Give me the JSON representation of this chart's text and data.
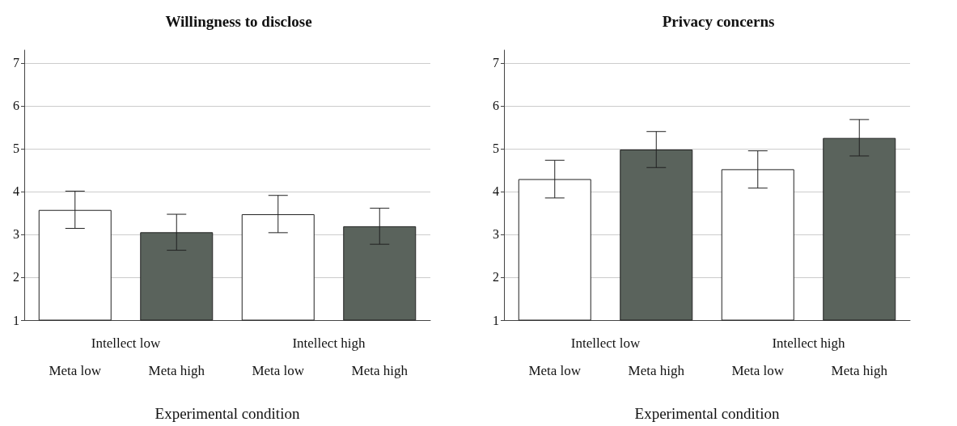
{
  "chart_data": [
    {
      "type": "bar",
      "title": "Willingness to disclose",
      "xlabel": "Experimental condition",
      "categories": [
        "Meta low",
        "Meta high",
        "Meta low",
        "Meta high"
      ],
      "values": [
        3.57,
        3.05,
        3.47,
        3.19
      ],
      "colors": [
        "#ffffff",
        "#5a635c",
        "#ffffff",
        "#5a635c"
      ],
      "errors": [
        [
          3.14,
          4.01
        ],
        [
          2.63,
          3.47
        ],
        [
          3.04,
          3.91
        ],
        [
          2.77,
          3.61
        ]
      ],
      "annotations": [
        "Intellect low",
        "Intellect high"
      ],
      "ylim": [
        1,
        7.3
      ],
      "yticks": [
        1,
        2,
        3,
        4,
        5,
        6,
        7
      ],
      "grid": "y"
    },
    {
      "type": "bar",
      "title": "Privacy concerns",
      "xlabel": "Experimental condition",
      "categories": [
        "Meta low",
        "Meta high",
        "Meta low",
        "Meta high"
      ],
      "values": [
        4.29,
        4.98,
        4.52,
        5.25
      ],
      "colors": [
        "#ffffff",
        "#5a635c",
        "#ffffff",
        "#5a635c"
      ],
      "errors": [
        [
          3.85,
          4.73
        ],
        [
          4.56,
          5.4
        ],
        [
          4.08,
          4.95
        ],
        [
          4.83,
          5.68
        ]
      ],
      "annotations": [
        "Intellect low",
        "Intellect high"
      ],
      "ylim": [
        1,
        7.3
      ],
      "yticks": [
        1,
        2,
        3,
        4,
        5,
        6,
        7
      ],
      "grid": "y"
    }
  ]
}
